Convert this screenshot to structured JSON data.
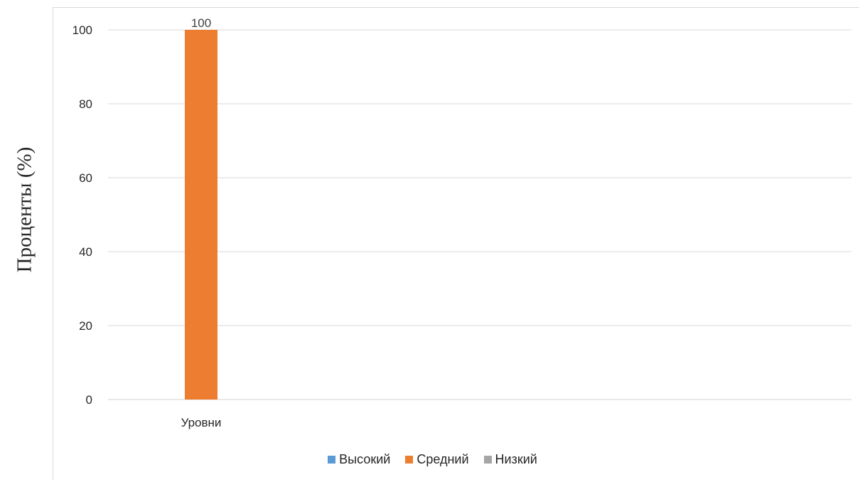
{
  "chart_data": {
    "type": "bar",
    "categories": [
      "Уровни"
    ],
    "series": [
      {
        "name": "Высокий",
        "values": [
          0
        ],
        "color": "#5b9bd5"
      },
      {
        "name": "Средний",
        "values": [
          100
        ],
        "color": "#ed7d31"
      },
      {
        "name": "Низкий",
        "values": [
          0
        ],
        "color": "#a5a5a5"
      }
    ],
    "data_labels": [
      "",
      "100",
      ""
    ],
    "ylabel": "Проценты (%)",
    "xlabel": "",
    "ylim": [
      0,
      100
    ],
    "yticks": [
      "0",
      "20",
      "40",
      "60",
      "80",
      "100"
    ],
    "grid": true,
    "legend_position": "bottom"
  }
}
